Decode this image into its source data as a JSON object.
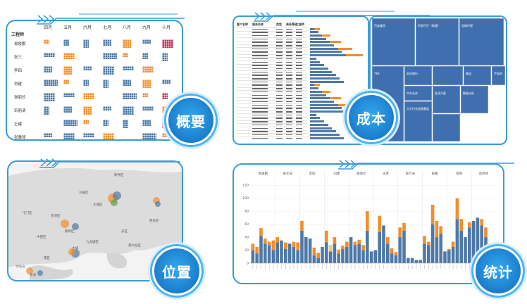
{
  "colors": {
    "blue": "#4e79a7",
    "orange": "#f28e2b",
    "red": "#c0304f",
    "yellow": "#f1ce63",
    "lightblue": "#5b8fc9",
    "frame": "#3a9bd8"
  },
  "overview": {
    "badge": "概要",
    "corner_label": "工程师",
    "months": [
      "四月",
      "五月",
      "六月",
      "七月",
      "八月",
      "九月",
      "十月"
    ],
    "engineers": [
      "易俊鹏",
      "张三",
      "李四",
      "刘建",
      "谢丽珍",
      "宋丽清",
      "王建",
      "张雅琴"
    ]
  },
  "cost": {
    "badge": "成本",
    "table_headers": [
      "客户名称",
      "服务名称",
      "类型",
      "责任等级",
      "工程师"
    ],
    "treemap_labels": [
      {
        "v": "",
        "t": "百度集团"
      },
      {
        "v": "",
        "t": "阿里巴巴（联盟）"
      },
      {
        "v": "",
        "t": "金蝶代理"
      },
      {
        "v": "",
        "t": "TEK"
      },
      {
        "v": "",
        "t": "宏信银行"
      },
      {
        "v": "",
        "t": ""
      },
      {
        "v": "",
        "t": "基层"
      },
      {
        "v": "",
        "t": "宇宙的"
      },
      {
        "v": "",
        "t": "中台业务"
      },
      {
        "v": "",
        "t": "大力行业组建基层"
      },
      {
        "v": "",
        "t": "金顶大厦"
      },
      {
        "v": "",
        "t": "数据分析"
      },
      {
        "v": "",
        "t": ""
      }
    ]
  },
  "location": {
    "badge": "位置",
    "place_labels": [
      "新界区",
      "沙田区",
      "大埔区",
      "屯门区",
      "荃湾区",
      "西贡区",
      "葵青区",
      "中西区",
      "东区",
      "九龙城区",
      "大埔",
      "南区",
      "大屿山",
      "黄大仙区",
      "长洲"
    ]
  },
  "stats": {
    "badge": "统计",
    "group_labels": [
      "易俊鹏",
      "张文成",
      "李四",
      "刘建",
      "谢丽珍",
      "王彦",
      "张力涛",
      "张雅",
      "徐阳",
      "彭新民"
    ],
    "y_ticks": [
      "0",
      "20",
      "40",
      "60",
      "80",
      "100",
      "120"
    ]
  },
  "chart_data": {
    "type": "bar",
    "stacked": true,
    "ylim": [
      0,
      130
    ],
    "y_ticks": [
      0,
      20,
      40,
      60,
      80,
      100,
      120
    ],
    "series": [
      {
        "values": [
          20,
          15,
          42,
          30,
          28,
          20,
          32,
          35,
          22,
          30,
          25,
          20,
          50,
          40,
          38,
          12,
          8,
          25,
          32,
          18,
          30,
          15,
          22,
          25,
          40,
          28,
          30,
          20,
          50,
          18,
          20,
          48,
          58,
          30,
          15,
          12,
          40,
          50,
          8,
          8,
          5,
          5,
          30,
          28,
          60,
          40,
          45,
          18,
          20,
          25,
          68,
          50,
          40,
          55,
          65,
          70,
          58,
          40,
          30,
          10
        ]
      },
      {
        "values": [
          10,
          10,
          12,
          8,
          5,
          15,
          8,
          0,
          10,
          0,
          8,
          12,
          15,
          0,
          0,
          12,
          8,
          0,
          18,
          0,
          10,
          6,
          5,
          8,
          0,
          5,
          6,
          8,
          30,
          0,
          0,
          25,
          0,
          10,
          8,
          5,
          15,
          12,
          0,
          0,
          0,
          0,
          12,
          5,
          30,
          25,
          12,
          0,
          2,
          8,
          32,
          18,
          0,
          8,
          0,
          0,
          10,
          15,
          0,
          5
        ]
      },
      {
        "values": [
          0,
          0,
          0,
          0,
          0,
          0,
          0,
          0,
          0,
          0,
          0,
          0,
          0,
          0,
          0,
          0,
          0,
          0,
          0,
          0,
          0,
          0,
          0,
          0,
          0,
          0,
          0,
          0,
          0,
          0,
          0,
          0,
          0,
          0,
          0,
          0,
          0,
          0,
          0,
          0,
          0,
          0,
          0,
          0,
          0,
          0,
          0,
          0,
          0,
          0,
          0,
          0,
          0,
          0,
          0,
          0,
          0,
          0,
          0,
          0
        ]
      },
      {
        "values": [
          0,
          0,
          0,
          0,
          0,
          0,
          0,
          0,
          0,
          0,
          0,
          0,
          0,
          0,
          0,
          0,
          0,
          0,
          0,
          10,
          0,
          0,
          0,
          0,
          0,
          0,
          0,
          0,
          0,
          0,
          0,
          0,
          0,
          0,
          0,
          0,
          0,
          0,
          0,
          0,
          0,
          0,
          0,
          0,
          0,
          0,
          0,
          0,
          0,
          0,
          0,
          0,
          0,
          0,
          0,
          0,
          0,
          0,
          0,
          0
        ]
      }
    ]
  }
}
